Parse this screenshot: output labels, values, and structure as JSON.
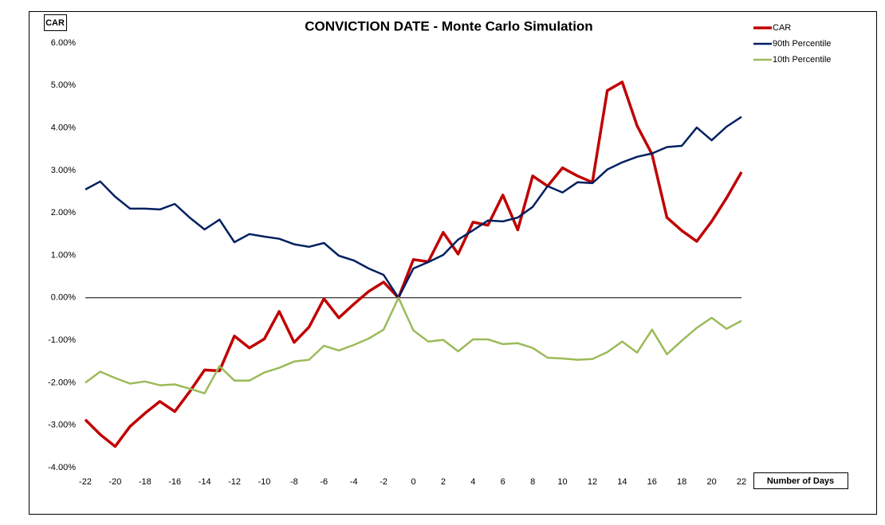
{
  "chart_data": {
    "type": "line",
    "title": "CONVICTION DATE - Monte Carlo Simulation",
    "y_label": "CAR",
    "x_label": "Number of Days",
    "legend": "top-right",
    "x": [
      -22,
      -21,
      -20,
      -19,
      -18,
      -17,
      -16,
      -15,
      -14,
      -13,
      -12,
      -11,
      -10,
      -9,
      -8,
      -7,
      -6,
      -5,
      -4,
      -3,
      -2,
      -1,
      0,
      1,
      2,
      3,
      4,
      5,
      6,
      7,
      8,
      9,
      10,
      11,
      12,
      13,
      14,
      15,
      16,
      17,
      18,
      19,
      20,
      21,
      22
    ],
    "xlim": [
      -22,
      22
    ],
    "xticks": [
      -22,
      -20,
      -18,
      -16,
      -14,
      -12,
      -10,
      -8,
      -6,
      -4,
      -2,
      0,
      2,
      4,
      6,
      8,
      10,
      12,
      14,
      16,
      18,
      20,
      22
    ],
    "ylim": [
      -4,
      6
    ],
    "yticks": [
      {
        "value": -4,
        "label": "-4.00%"
      },
      {
        "value": -3,
        "label": "-3.00%"
      },
      {
        "value": -2,
        "label": "-2.00%"
      },
      {
        "value": -1,
        "label": "-1.00%"
      },
      {
        "value": 0,
        "label": "0.00%"
      },
      {
        "value": 1,
        "label": "1.00%"
      },
      {
        "value": 2,
        "label": "2.00%"
      },
      {
        "value": 3,
        "label": "3.00%"
      },
      {
        "value": 4,
        "label": "4.00%"
      },
      {
        "value": 5,
        "label": "5.00%"
      },
      {
        "value": 6,
        "label": "6.00%"
      }
    ],
    "grid": false,
    "series": [
      {
        "name": "CAR",
        "color": "#c00000",
        "width": 3.5,
        "values": [
          -2.87,
          -3.22,
          -3.5,
          -3.03,
          -2.72,
          -2.44,
          -2.68,
          -2.21,
          -1.7,
          -1.72,
          -0.9,
          -1.18,
          -0.97,
          -0.32,
          -1.05,
          -0.69,
          -0.02,
          -0.47,
          -0.15,
          0.15,
          0.37,
          0,
          0.9,
          0.85,
          1.54,
          1.03,
          1.78,
          1.71,
          2.42,
          1.6,
          2.87,
          2.63,
          3.06,
          2.87,
          2.72,
          4.88,
          5.08,
          4.05,
          3.38,
          1.89,
          1.58,
          1.33,
          1.8,
          2.35,
          2.96
        ]
      },
      {
        "name": "90th Percentile",
        "color": "#002060",
        "width": 2.5,
        "values": [
          2.55,
          2.74,
          2.38,
          2.1,
          2.1,
          2.08,
          2.21,
          1.89,
          1.61,
          1.84,
          1.31,
          1.5,
          1.44,
          1.39,
          1.26,
          1.2,
          1.29,
          0.99,
          0.88,
          0.69,
          0.54,
          0,
          0.69,
          0.84,
          1.01,
          1.37,
          1.59,
          1.82,
          1.8,
          1.89,
          2.14,
          2.63,
          2.48,
          2.72,
          2.7,
          3.02,
          3.19,
          3.32,
          3.4,
          3.55,
          3.58,
          4.01,
          3.71,
          4.03,
          4.26
        ]
      },
      {
        "name": "10th Percentile",
        "color": "#9bbb59",
        "width": 2.5,
        "values": [
          -2.0,
          -1.74,
          -1.89,
          -2.02,
          -1.97,
          -2.06,
          -2.04,
          -2.14,
          -2.25,
          -1.61,
          -1.95,
          -1.95,
          -1.76,
          -1.65,
          -1.5,
          -1.46,
          -1.13,
          -1.24,
          -1.11,
          -0.96,
          -0.75,
          0,
          -0.77,
          -1.03,
          -0.99,
          -1.26,
          -0.98,
          -0.98,
          -1.09,
          -1.07,
          -1.18,
          -1.41,
          -1.43,
          -1.46,
          -1.44,
          -1.28,
          -1.03,
          -1.29,
          -0.75,
          -1.33,
          -1.01,
          -0.71,
          -0.47,
          -0.73,
          -0.54
        ]
      }
    ]
  }
}
